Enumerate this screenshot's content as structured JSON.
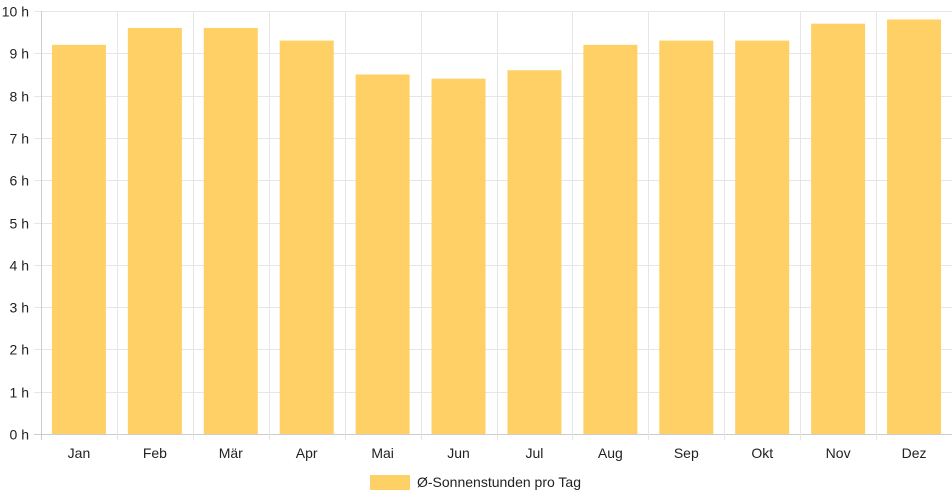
{
  "chart_data": {
    "type": "bar",
    "categories": [
      "Jan",
      "Feb",
      "Mär",
      "Apr",
      "Mai",
      "Jun",
      "Jul",
      "Aug",
      "Sep",
      "Okt",
      "Nov",
      "Dez"
    ],
    "series": [
      {
        "name": "Ø-Sonnenstunden pro Tag",
        "values": [
          9.2,
          9.6,
          9.6,
          9.3,
          8.5,
          8.4,
          8.6,
          9.2,
          9.3,
          9.3,
          9.7,
          9.8
        ],
        "color": "#fed066"
      }
    ],
    "y_ticks": [
      "0 h",
      "1 h",
      "2 h",
      "3 h",
      "4 h",
      "5 h",
      "6 h",
      "7 h",
      "8 h",
      "9 h",
      "10 h"
    ],
    "ylim": [
      0,
      10
    ],
    "grid": true,
    "legend_position": "bottom-center",
    "grid_color": "#e6e6e6",
    "axis_color": "#cccccc"
  }
}
